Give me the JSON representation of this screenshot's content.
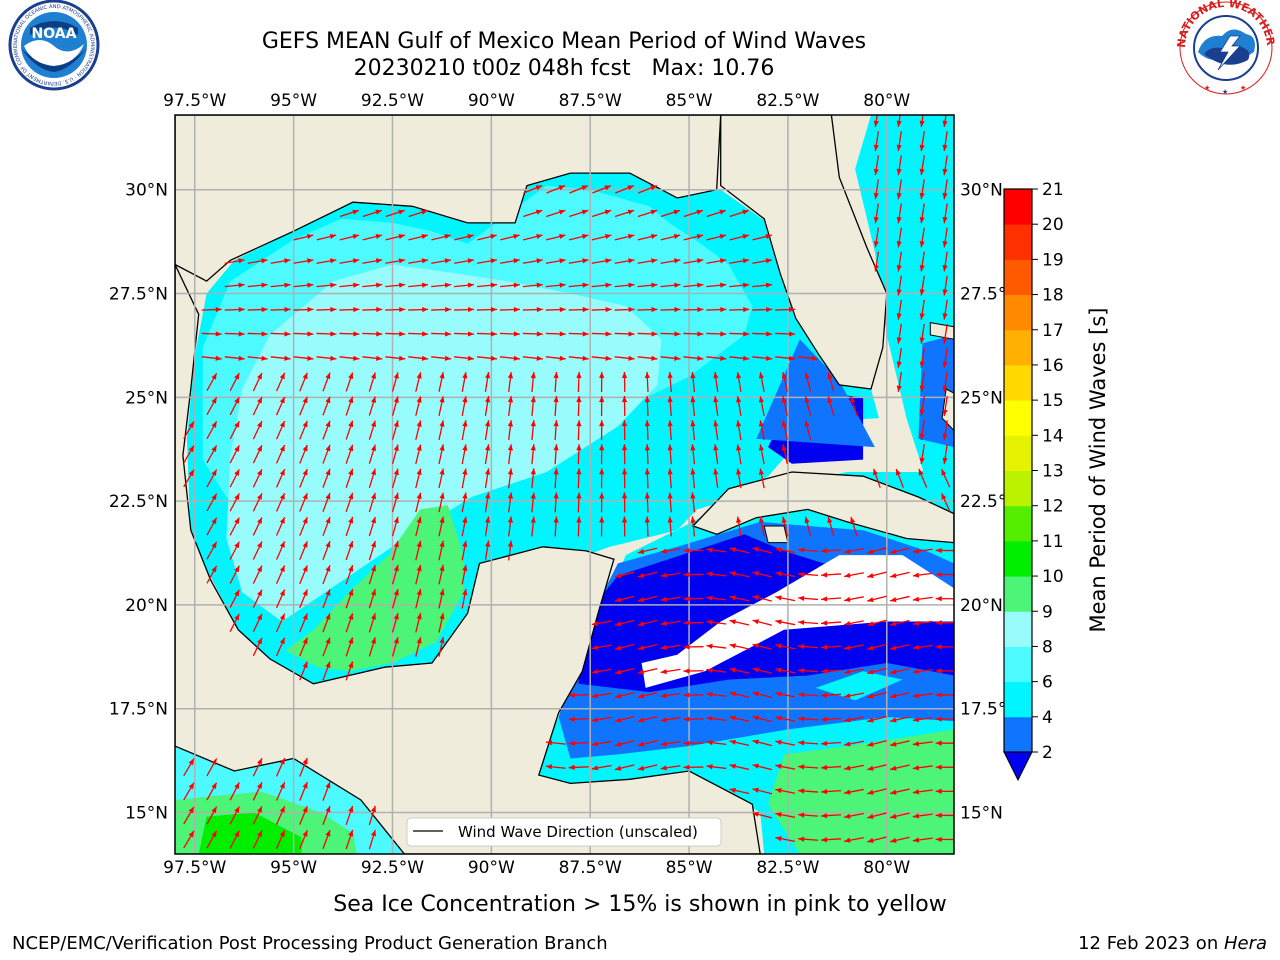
{
  "title": {
    "line1": "GEFS MEAN Gulf of Mexico Mean Period of Wind Waves",
    "line2": "20230210 t00z 048h fcst   Max: 10.76"
  },
  "logos": {
    "left": {
      "text": "NOAA",
      "ring_text": "NATIONAL OCEANIC AND ATMOSPHERIC ADMINISTRATION · U.S. DEPARTMENT OF COMMERCE"
    },
    "right": {
      "ring_text": "NATIONAL WEATHER SERVICE"
    }
  },
  "map": {
    "lon_ticks": [
      "97.5°W",
      "95°W",
      "92.5°W",
      "90°W",
      "87.5°W",
      "85°W",
      "82.5°W",
      "80°W"
    ],
    "lon_values": [
      -97.5,
      -95,
      -92.5,
      -90,
      -87.5,
      -85,
      -82.5,
      -80
    ],
    "lat_ticks": [
      "15°N",
      "17.5°N",
      "20°N",
      "22.5°N",
      "25°N",
      "27.5°N",
      "30°N"
    ],
    "lat_values": [
      15,
      17.5,
      20,
      22.5,
      25,
      27.5,
      30
    ],
    "lon_range": [
      -98,
      -78.3
    ],
    "lat_range": [
      14,
      31.8
    ],
    "gridlines": true,
    "legend": "Wind Wave Direction (unscaled)",
    "legend_position": "bottom-right",
    "colors": {
      "land": "#efecdc",
      "grid": "#b0b0b0",
      "arrow": "#ff0000",
      "coast": "#000000"
    }
  },
  "colorbar": {
    "label": "Mean Period of Wind Waves [s]",
    "tick_labels": [
      "2",
      "4",
      "6",
      "8",
      "9",
      "10",
      "11",
      "12",
      "13",
      "14",
      "15",
      "16",
      "17",
      "18",
      "19",
      "20",
      "21"
    ],
    "levels": [
      2,
      4,
      6,
      8,
      9,
      10,
      11,
      12,
      13,
      14,
      15,
      16,
      17,
      18,
      19,
      20,
      21
    ],
    "colors": [
      "#0f75ff",
      "#00f5ff",
      "#4cfaff",
      "#98fcfc",
      "#4cf478",
      "#00ee00",
      "#55ee00",
      "#bbf200",
      "#e6f200",
      "#ffff00",
      "#ffd900",
      "#ffb000",
      "#ff8a00",
      "#ff5a00",
      "#ff3000",
      "#ff0000"
    ],
    "under_color": "#0000f0"
  },
  "footer": {
    "ice_note": "Sea Ice Concentration > 15% is shown in pink to yellow",
    "credit": "NCEP/EMC/Verification Post Processing Product Generation Branch",
    "date_prefix": "12 Feb 2023 on ",
    "machine": "Hera"
  }
}
